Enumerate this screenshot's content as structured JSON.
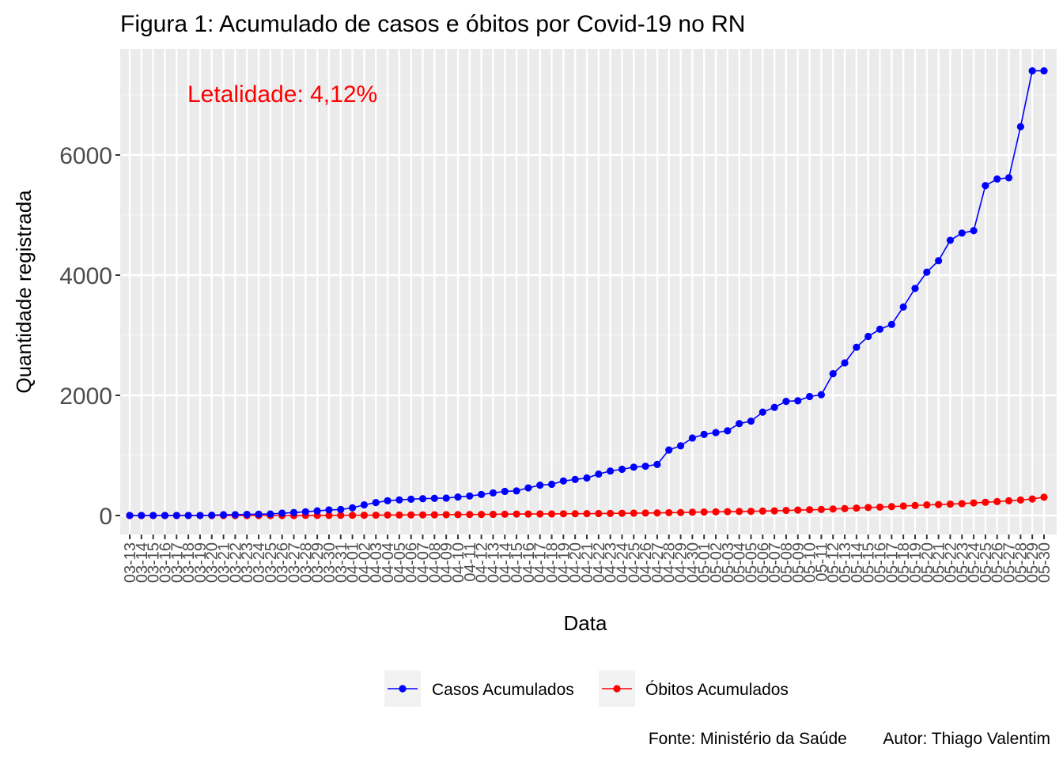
{
  "chart_data": {
    "type": "line",
    "title": "Figura 1: Acumulado de casos e óbitos por Covid-19 no RN",
    "annotation": "Letalidade: 4,12%",
    "xlabel": "Data",
    "ylabel": "Quantidade registrada",
    "caption": "Fonte: Ministério da Saúde        Autor: Thiago Valentim",
    "ylim": [
      -200,
      7800
    ],
    "yticks": [
      0,
      2000,
      4000,
      6000
    ],
    "grid": true,
    "legend_position": "bottom",
    "x": [
      "03-13",
      "03-14",
      "03-15",
      "03-16",
      "03-17",
      "03-18",
      "03-19",
      "03-20",
      "03-21",
      "03-22",
      "03-23",
      "03-24",
      "03-25",
      "03-26",
      "03-27",
      "03-28",
      "03-29",
      "03-30",
      "03-31",
      "04-01",
      "04-02",
      "04-03",
      "04-04",
      "04-05",
      "04-06",
      "04-07",
      "04-08",
      "04-09",
      "04-10",
      "04-11",
      "04-12",
      "04-13",
      "04-14",
      "04-15",
      "04-16",
      "04-17",
      "04-18",
      "04-19",
      "04-20",
      "04-21",
      "04-22",
      "04-23",
      "04-24",
      "04-25",
      "04-26",
      "04-27",
      "04-28",
      "04-29",
      "04-30",
      "05-01",
      "05-02",
      "05-03",
      "05-04",
      "05-05",
      "05-06",
      "05-07",
      "05-08",
      "05-09",
      "05-10",
      "05-11",
      "05-12",
      "05-13",
      "05-14",
      "05-15",
      "05-16",
      "05-17",
      "05-18",
      "05-19",
      "05-20",
      "05-21",
      "05-22",
      "05-23",
      "05-24",
      "05-25",
      "05-26",
      "05-27",
      "05-28",
      "05-29",
      "05-30"
    ],
    "series": [
      {
        "name": "Casos Acumulados",
        "color": "#0000ff",
        "values": [
          1,
          1,
          1,
          1,
          1,
          1,
          1,
          5,
          13,
          14,
          19,
          22,
          25,
          39,
          49,
          62,
          77,
          93,
          100,
          128,
          178,
          215,
          246,
          260,
          272,
          280,
          286,
          290,
          308,
          325,
          350,
          376,
          402,
          410,
          460,
          505,
          520,
          575,
          600,
          625,
          690,
          740,
          770,
          805,
          820,
          850,
          1090,
          1160,
          1290,
          1350,
          1380,
          1410,
          1530,
          1570,
          1720,
          1800,
          1900,
          1910,
          1980,
          2010,
          2360,
          2540,
          2800,
          2980,
          3100,
          3180,
          3470,
          3780,
          4050,
          4240,
          4580,
          4700,
          4740,
          5490,
          5600,
          5620,
          6470,
          7400,
          7400
        ],
        "values_note": ""
      },
      {
        "name": "Óbitos Acumulados",
        "color": "#ff0000",
        "values": [
          0,
          0,
          0,
          0,
          0,
          0,
          0,
          0,
          0,
          0,
          0,
          0,
          0,
          0,
          0,
          1,
          1,
          2,
          4,
          4,
          5,
          6,
          8,
          9,
          10,
          11,
          12,
          14,
          15,
          17,
          18,
          20,
          22,
          24,
          25,
          26,
          27,
          29,
          30,
          31,
          33,
          35,
          37,
          39,
          41,
          43,
          47,
          50,
          55,
          58,
          61,
          64,
          67,
          70,
          74,
          78,
          85,
          90,
          95,
          100,
          108,
          115,
          124,
          133,
          140,
          148,
          158,
          166,
          176,
          183,
          190,
          198,
          210,
          220,
          232,
          245,
          258,
          275,
          305
        ]
      }
    ]
  }
}
